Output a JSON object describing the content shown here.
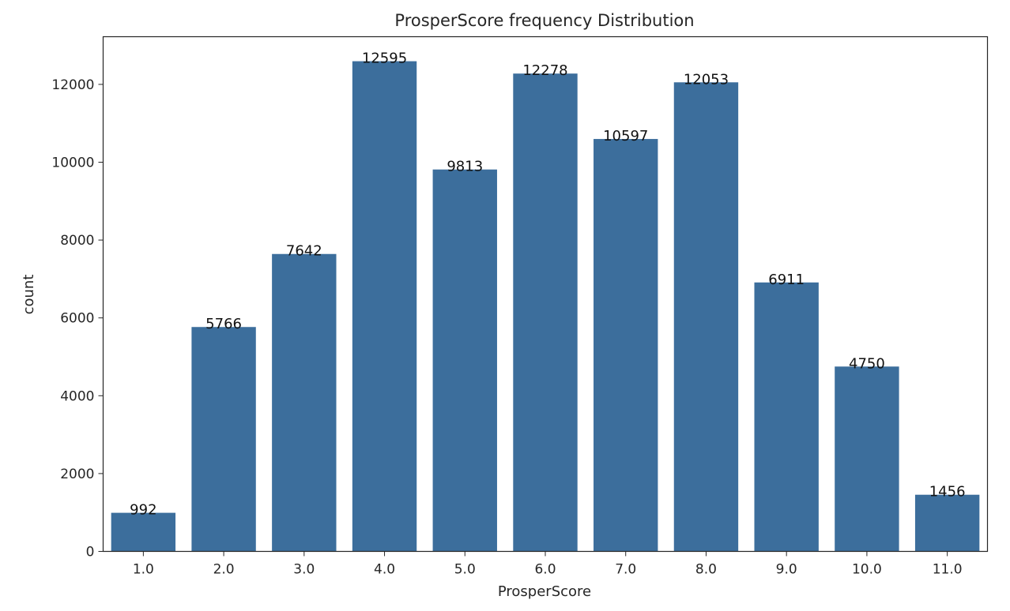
{
  "chart_data": {
    "type": "bar",
    "title": "ProsperScore frequency Distribution",
    "xlabel": "ProsperScore",
    "ylabel": "count",
    "categories": [
      "1.0",
      "2.0",
      "3.0",
      "4.0",
      "5.0",
      "6.0",
      "7.0",
      "8.0",
      "9.0",
      "10.0",
      "11.0"
    ],
    "values": [
      992,
      5766,
      7642,
      12595,
      9813,
      12278,
      10597,
      12053,
      6911,
      4750,
      1456
    ],
    "data_labels": [
      "992",
      "5766",
      "7642",
      "12595",
      "9813",
      "12278",
      "10597",
      "12053",
      "6911",
      "4750",
      "1456"
    ],
    "yticks": [
      "0",
      "2000",
      "4000",
      "6000",
      "8000",
      "10000",
      "12000"
    ],
    "ytick_values": [
      0,
      2000,
      4000,
      6000,
      8000,
      10000,
      12000
    ],
    "ylim": [
      0,
      13225
    ],
    "grid": false,
    "colors": {
      "bar": "#3c6e9c",
      "axis": "#262626"
    }
  }
}
